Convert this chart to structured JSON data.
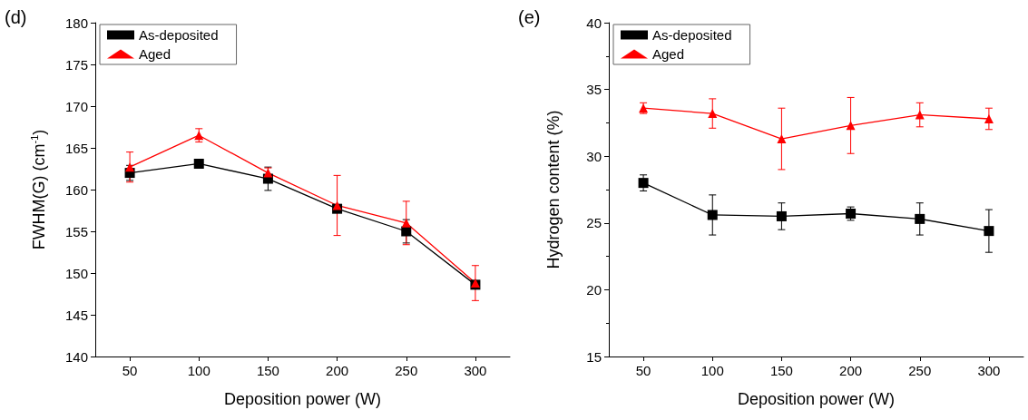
{
  "chart_data": [
    {
      "type": "line",
      "title": "(d)",
      "xlabel": "Deposition power (W)",
      "ylabel": "FWHM(G) (cm$^{-1}$)",
      "x": [
        50,
        100,
        150,
        200,
        250,
        300
      ],
      "xlim": [
        25,
        325
      ],
      "xticks": [
        50,
        100,
        150,
        200,
        250,
        300
      ],
      "ylim": [
        140,
        180
      ],
      "yticks": [
        140,
        145,
        150,
        155,
        160,
        165,
        170,
        175,
        180
      ],
      "grid": false,
      "legend": "top left",
      "line_style": "solid",
      "series": [
        {
          "name": "As-deposited",
          "color": "#000000",
          "marker": "square",
          "values": [
            162.0,
            163.1,
            161.3,
            157.7,
            155.0,
            148.6
          ],
          "errors": [
            0.9,
            0.2,
            1.4,
            0.3,
            1.4,
            0.3
          ]
        },
        {
          "name": "Aged",
          "color": "#ff0000",
          "marker": "triangle",
          "values": [
            162.7,
            166.5,
            162.0,
            158.1,
            156.0,
            148.8
          ],
          "errors": [
            1.8,
            0.8,
            0.6,
            3.6,
            2.6,
            2.1
          ]
        }
      ]
    },
    {
      "type": "line",
      "title": "(e)",
      "xlabel": "Deposition power (W)",
      "ylabel": "Hydrogen content (%)",
      "x": [
        50,
        100,
        150,
        200,
        250,
        300
      ],
      "xlim": [
        25,
        325
      ],
      "xticks": [
        50,
        100,
        150,
        200,
        250,
        300
      ],
      "ylim": [
        15,
        40
      ],
      "yticks": [
        15,
        20,
        25,
        30,
        35,
        40
      ],
      "grid": false,
      "legend": "top left",
      "line_style": "solid",
      "series": [
        {
          "name": "As-deposited",
          "color": "#000000",
          "marker": "square",
          "values": [
            28.0,
            25.6,
            25.5,
            25.7,
            25.3,
            24.4
          ],
          "errors": [
            0.6,
            1.5,
            1.0,
            0.5,
            1.2,
            1.6
          ]
        },
        {
          "name": "Aged",
          "color": "#ff0000",
          "marker": "triangle",
          "values": [
            33.6,
            33.2,
            31.3,
            32.3,
            33.1,
            32.8
          ],
          "errors": [
            0.4,
            1.1,
            2.3,
            2.1,
            0.9,
            0.8
          ]
        }
      ]
    }
  ]
}
